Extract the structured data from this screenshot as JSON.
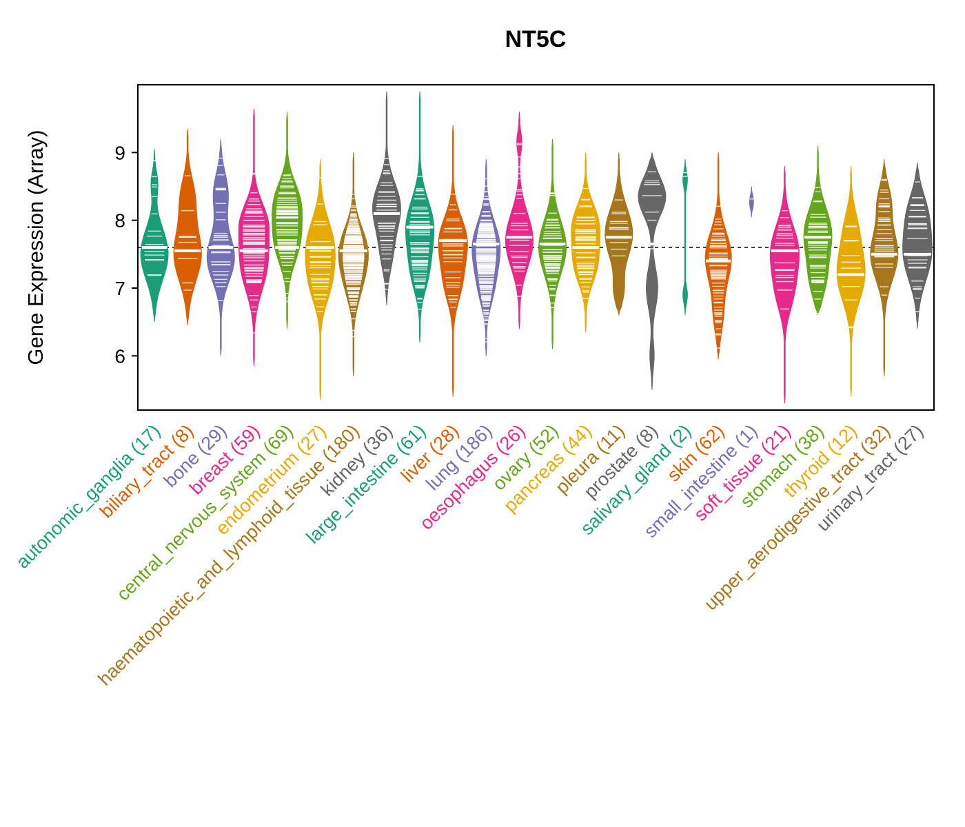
{
  "chart_data": {
    "type": "violin",
    "title": "NT5C",
    "xlabel": "",
    "ylabel": "Gene Expression (Array)",
    "ylim": [
      5.2,
      10.0
    ],
    "yticks": [
      6,
      7,
      8,
      9
    ],
    "reference_line": 7.6,
    "grid": "off",
    "legend": "none",
    "palette": [
      "#1B9E77",
      "#D95F02",
      "#7570B3",
      "#E7298A",
      "#66A61E",
      "#E6AB02",
      "#A6761D",
      "#666666"
    ],
    "marker_color": "#FFFFFF",
    "groups": [
      {
        "label": "autonomic_ganglia",
        "n": 17,
        "median": 7.6,
        "min": 6.5,
        "max": 9.05,
        "bulges": [
          [
            7.5,
            0.95,
            0.38
          ],
          [
            8.55,
            0.22,
            0.18
          ]
        ]
      },
      {
        "label": "biliary_tract",
        "n": 8,
        "median": 7.55,
        "min": 6.45,
        "max": 9.35,
        "bulges": [
          [
            7.5,
            0.95,
            0.4
          ],
          [
            8.35,
            0.45,
            0.3
          ]
        ]
      },
      {
        "label": "bone",
        "n": 29,
        "median": 7.6,
        "min": 6.0,
        "max": 9.2,
        "bulges": [
          [
            7.45,
            0.95,
            0.35
          ],
          [
            8.4,
            0.5,
            0.3
          ]
        ]
      },
      {
        "label": "breast",
        "n": 59,
        "median": 7.55,
        "min": 5.85,
        "max": 9.65,
        "bulges": [
          [
            7.35,
            0.9,
            0.4
          ],
          [
            8.0,
            0.75,
            0.3
          ]
        ]
      },
      {
        "label": "central_nervous_system",
        "n": 69,
        "median": 7.6,
        "min": 6.4,
        "max": 9.6,
        "bulges": [
          [
            7.7,
            0.85,
            0.35
          ],
          [
            8.3,
            0.75,
            0.3
          ]
        ]
      },
      {
        "label": "endometrium",
        "n": 27,
        "median": 7.6,
        "min": 5.35,
        "max": 8.9,
        "bulges": [
          [
            7.6,
            0.95,
            0.4
          ],
          [
            7.0,
            0.45,
            0.3
          ]
        ]
      },
      {
        "label": "haematopoietic_and_lymphoid_tissue",
        "n": 180,
        "median": 7.55,
        "min": 5.7,
        "max": 9.0,
        "bulges": [
          [
            7.55,
            0.95,
            0.35
          ],
          [
            7.0,
            0.35,
            0.3
          ]
        ]
      },
      {
        "label": "kidney",
        "n": 36,
        "median": 8.1,
        "min": 6.75,
        "max": 9.9,
        "bulges": [
          [
            8.2,
            0.95,
            0.35
          ],
          [
            7.5,
            0.35,
            0.3
          ]
        ]
      },
      {
        "label": "large_intestine",
        "n": 61,
        "median": 7.9,
        "min": 6.2,
        "max": 9.9,
        "bulges": [
          [
            7.9,
            0.95,
            0.4
          ],
          [
            7.2,
            0.45,
            0.3
          ]
        ]
      },
      {
        "label": "liver",
        "n": 28,
        "median": 7.7,
        "min": 5.4,
        "max": 9.4,
        "bulges": [
          [
            7.7,
            0.95,
            0.35
          ],
          [
            7.05,
            0.5,
            0.3
          ]
        ]
      },
      {
        "label": "lung",
        "n": 186,
        "median": 7.65,
        "min": 6.0,
        "max": 8.9,
        "bulges": [
          [
            7.6,
            0.95,
            0.38
          ],
          [
            6.95,
            0.35,
            0.28
          ]
        ]
      },
      {
        "label": "oesophagus",
        "n": 26,
        "median": 7.75,
        "min": 6.4,
        "max": 9.6,
        "bulges": [
          [
            7.7,
            0.95,
            0.4
          ],
          [
            9.15,
            0.18,
            0.15
          ]
        ]
      },
      {
        "label": "ovary",
        "n": 52,
        "median": 7.65,
        "min": 6.1,
        "max": 9.2,
        "bulges": [
          [
            7.6,
            0.95,
            0.4
          ]
        ]
      },
      {
        "label": "pancreas",
        "n": 44,
        "median": 7.6,
        "min": 6.35,
        "max": 9.0,
        "bulges": [
          [
            7.95,
            0.85,
            0.3
          ],
          [
            7.35,
            0.75,
            0.3
          ]
        ]
      },
      {
        "label": "pleura",
        "n": 11,
        "median": 7.75,
        "min": 6.6,
        "max": 9.0,
        "bulges": [
          [
            7.8,
            0.95,
            0.38
          ],
          [
            6.95,
            0.3,
            0.2
          ]
        ]
      },
      {
        "label": "prostate",
        "n": 8,
        "median": 7.65,
        "min": 5.5,
        "max": 9.0,
        "bulges": [
          [
            8.35,
            0.95,
            0.28
          ],
          [
            7.0,
            0.4,
            0.3
          ],
          [
            6.0,
            0.15,
            0.2
          ]
        ]
      },
      {
        "label": "salivary_gland",
        "n": 2,
        "median": null,
        "min": 6.6,
        "max": 8.9,
        "bulges": [
          [
            8.6,
            0.16,
            0.12
          ],
          [
            6.9,
            0.16,
            0.12
          ]
        ]
      },
      {
        "label": "skin",
        "n": 62,
        "median": 7.4,
        "min": 5.95,
        "max": 9.0,
        "bulges": [
          [
            7.45,
            0.9,
            0.38
          ],
          [
            6.6,
            0.3,
            0.3
          ]
        ]
      },
      {
        "label": "small_intestine",
        "n": 1,
        "median": null,
        "min": 8.05,
        "max": 8.5,
        "bulges": [
          [
            8.27,
            0.14,
            0.1
          ]
        ]
      },
      {
        "label": "soft_tissue",
        "n": 21,
        "median": 7.55,
        "min": 5.3,
        "max": 8.8,
        "bulges": [
          [
            7.55,
            0.95,
            0.38
          ],
          [
            6.9,
            0.45,
            0.3
          ]
        ]
      },
      {
        "label": "stomach",
        "n": 38,
        "median": 7.75,
        "min": 6.6,
        "max": 9.1,
        "bulges": [
          [
            7.8,
            0.95,
            0.38
          ],
          [
            7.1,
            0.45,
            0.28
          ]
        ]
      },
      {
        "label": "thyroid",
        "n": 12,
        "median": 7.2,
        "min": 5.4,
        "max": 8.8,
        "bulges": [
          [
            7.2,
            0.95,
            0.4
          ],
          [
            7.9,
            0.35,
            0.3
          ]
        ]
      },
      {
        "label": "upper_aerodigestive_tract",
        "n": 32,
        "median": 7.5,
        "min": 5.7,
        "max": 8.9,
        "bulges": [
          [
            7.5,
            0.95,
            0.38
          ],
          [
            8.3,
            0.4,
            0.25
          ]
        ]
      },
      {
        "label": "urinary_tract",
        "n": 27,
        "median": 7.5,
        "min": 6.4,
        "max": 8.85,
        "bulges": [
          [
            7.5,
            0.95,
            0.4
          ],
          [
            8.15,
            0.5,
            0.3
          ]
        ]
      }
    ]
  }
}
